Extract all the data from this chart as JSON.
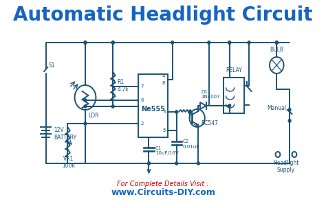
{
  "title": "Automatic Headlight Circuit",
  "title_color": "#1565C0",
  "title_fontsize": 20,
  "bg_color": "#ffffff",
  "circuit_color": "#1a5276",
  "footer_text1": "For Complete Details Visit :",
  "footer_text2": "www.Circuits-DIY.com",
  "footer_color1": "#cc0000",
  "footer_color2": "#1565C0",
  "lw": 1.4,
  "labels": {
    "battery": "12V\nBATTERY",
    "switch": "S1",
    "ldr": "LDR",
    "r1": "R1\n4.7k",
    "vr1": "VR1\n100k",
    "c1": "C1\n10uF/16V",
    "ne555": "Ne555",
    "c2": "C2\n0.01uF",
    "bc547": "BC547",
    "d1": "D1\n1N4007",
    "relay": "RELAY",
    "bulb": "BULB",
    "manual": "Manual",
    "headlight": "Headlight\nSupply"
  }
}
